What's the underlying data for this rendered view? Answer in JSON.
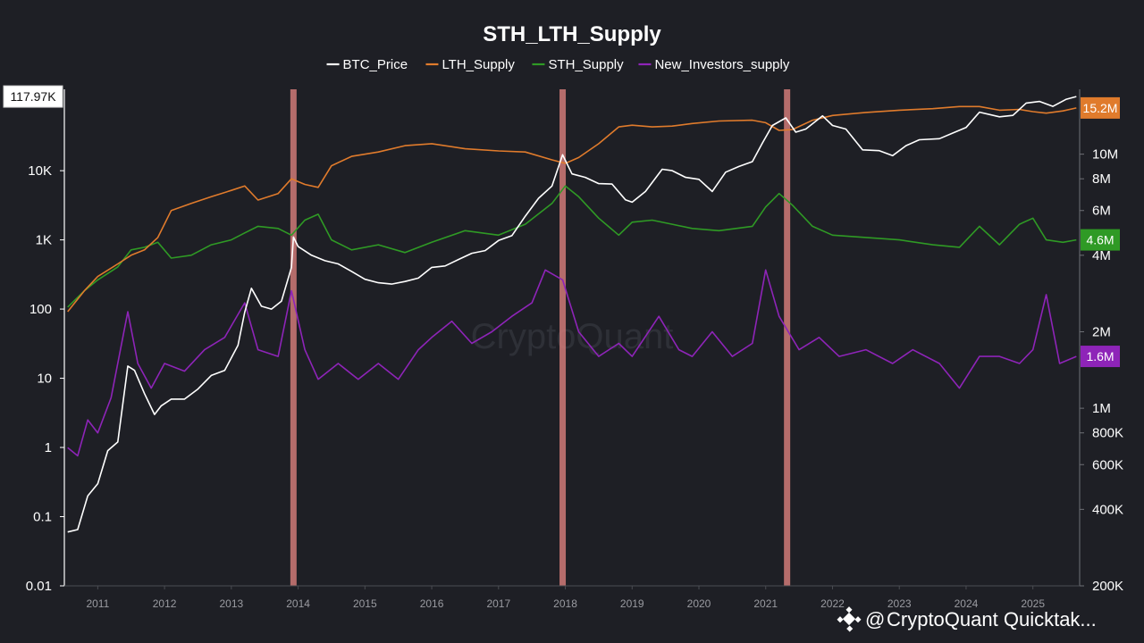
{
  "chart_data": {
    "type": "line",
    "title": "STH_LTH_Supply",
    "legend_position": "top-center",
    "grid": false,
    "x_axis": {
      "ticks": [
        "2011",
        "2012",
        "2013",
        "2014",
        "2015",
        "2016",
        "2017",
        "2018",
        "2019",
        "2020",
        "2021",
        "2022",
        "2023",
        "2024",
        "2025"
      ],
      "range": [
        2010.5,
        2025.7
      ]
    },
    "y_left": {
      "scale": "log",
      "range": [
        0.01,
        150000
      ],
      "ticks": [
        "0.01",
        "0.1",
        "1",
        "10",
        "100",
        "1K",
        "10K"
      ],
      "current_value_label": "117.97K",
      "current_value": 117970
    },
    "y_right": {
      "scale": "log",
      "range": [
        200000,
        18000000
      ],
      "ticks": [
        "200K",
        "400K",
        "600K",
        "800K",
        "1M",
        "2M",
        "4M",
        "6M",
        "8M",
        "10M"
      ]
    },
    "series": [
      {
        "name": "BTC_Price",
        "axis": "left",
        "color": "#ffffff",
        "current_label": "117.97K",
        "points": [
          [
            2010.55,
            0.06
          ],
          [
            2010.7,
            0.065
          ],
          [
            2010.85,
            0.2
          ],
          [
            2011.0,
            0.3
          ],
          [
            2011.15,
            0.9
          ],
          [
            2011.3,
            1.2
          ],
          [
            2011.45,
            15
          ],
          [
            2011.55,
            13
          ],
          [
            2011.7,
            6
          ],
          [
            2011.85,
            3
          ],
          [
            2011.95,
            4
          ],
          [
            2012.1,
            5
          ],
          [
            2012.3,
            5
          ],
          [
            2012.5,
            7
          ],
          [
            2012.7,
            11
          ],
          [
            2012.9,
            13
          ],
          [
            2013.1,
            30
          ],
          [
            2013.2,
            90
          ],
          [
            2013.3,
            200
          ],
          [
            2013.45,
            110
          ],
          [
            2013.6,
            100
          ],
          [
            2013.75,
            130
          ],
          [
            2013.9,
            400
          ],
          [
            2013.93,
            1100
          ],
          [
            2014.0,
            800
          ],
          [
            2014.2,
            600
          ],
          [
            2014.4,
            500
          ],
          [
            2014.6,
            450
          ],
          [
            2014.8,
            350
          ],
          [
            2015.0,
            270
          ],
          [
            2015.2,
            240
          ],
          [
            2015.4,
            230
          ],
          [
            2015.6,
            250
          ],
          [
            2015.8,
            280
          ],
          [
            2016.0,
            400
          ],
          [
            2016.2,
            420
          ],
          [
            2016.4,
            520
          ],
          [
            2016.6,
            640
          ],
          [
            2016.8,
            700
          ],
          [
            2017.0,
            980
          ],
          [
            2017.2,
            1150
          ],
          [
            2017.4,
            2200
          ],
          [
            2017.6,
            4000
          ],
          [
            2017.8,
            6000
          ],
          [
            2017.96,
            17000
          ],
          [
            2018.1,
            9000
          ],
          [
            2018.3,
            8000
          ],
          [
            2018.5,
            6500
          ],
          [
            2018.7,
            6400
          ],
          [
            2018.9,
            3800
          ],
          [
            2019.0,
            3500
          ],
          [
            2019.2,
            5000
          ],
          [
            2019.45,
            10500
          ],
          [
            2019.6,
            10000
          ],
          [
            2019.8,
            8000
          ],
          [
            2020.0,
            7500
          ],
          [
            2020.2,
            5000
          ],
          [
            2020.4,
            9500
          ],
          [
            2020.6,
            11500
          ],
          [
            2020.8,
            13500
          ],
          [
            2020.95,
            25000
          ],
          [
            2021.1,
            45000
          ],
          [
            2021.3,
            58000
          ],
          [
            2021.45,
            36000
          ],
          [
            2021.6,
            40000
          ],
          [
            2021.85,
            62000
          ],
          [
            2022.0,
            45000
          ],
          [
            2022.2,
            40000
          ],
          [
            2022.45,
            20000
          ],
          [
            2022.7,
            19500
          ],
          [
            2022.9,
            16500
          ],
          [
            2023.1,
            23000
          ],
          [
            2023.3,
            28000
          ],
          [
            2023.6,
            29000
          ],
          [
            2023.8,
            35000
          ],
          [
            2024.0,
            42000
          ],
          [
            2024.2,
            70000
          ],
          [
            2024.5,
            60000
          ],
          [
            2024.7,
            63000
          ],
          [
            2024.9,
            95000
          ],
          [
            2025.1,
            100000
          ],
          [
            2025.3,
            85000
          ],
          [
            2025.5,
            108000
          ],
          [
            2025.65,
            118000
          ]
        ]
      },
      {
        "name": "LTH_Supply",
        "axis": "right",
        "color": "#e07b2c",
        "current_label": "15.2M",
        "current_value": 15200000,
        "points": [
          [
            2010.55,
            2400000
          ],
          [
            2010.8,
            2900000
          ],
          [
            2011.0,
            3300000
          ],
          [
            2011.3,
            3700000
          ],
          [
            2011.5,
            4000000
          ],
          [
            2011.7,
            4200000
          ],
          [
            2011.9,
            4700000
          ],
          [
            2012.1,
            6000000
          ],
          [
            2012.4,
            6400000
          ],
          [
            2012.7,
            6800000
          ],
          [
            2013.0,
            7200000
          ],
          [
            2013.2,
            7500000
          ],
          [
            2013.4,
            6600000
          ],
          [
            2013.7,
            7000000
          ],
          [
            2013.9,
            8000000
          ],
          [
            2014.1,
            7600000
          ],
          [
            2014.3,
            7400000
          ],
          [
            2014.5,
            9000000
          ],
          [
            2014.8,
            9800000
          ],
          [
            2015.2,
            10200000
          ],
          [
            2015.6,
            10800000
          ],
          [
            2016.0,
            11000000
          ],
          [
            2016.5,
            10500000
          ],
          [
            2017.0,
            10300000
          ],
          [
            2017.4,
            10200000
          ],
          [
            2017.8,
            9500000
          ],
          [
            2018.0,
            9200000
          ],
          [
            2018.2,
            9700000
          ],
          [
            2018.5,
            11000000
          ],
          [
            2018.8,
            12800000
          ],
          [
            2019.0,
            13000000
          ],
          [
            2019.3,
            12800000
          ],
          [
            2019.6,
            12900000
          ],
          [
            2019.9,
            13200000
          ],
          [
            2020.3,
            13500000
          ],
          [
            2020.8,
            13600000
          ],
          [
            2021.0,
            13300000
          ],
          [
            2021.2,
            12400000
          ],
          [
            2021.4,
            12500000
          ],
          [
            2021.7,
            13600000
          ],
          [
            2022.0,
            14200000
          ],
          [
            2022.5,
            14600000
          ],
          [
            2023.0,
            14900000
          ],
          [
            2023.5,
            15100000
          ],
          [
            2023.9,
            15400000
          ],
          [
            2024.2,
            15400000
          ],
          [
            2024.5,
            14900000
          ],
          [
            2024.8,
            15000000
          ],
          [
            2025.0,
            14700000
          ],
          [
            2025.2,
            14500000
          ],
          [
            2025.45,
            14800000
          ],
          [
            2025.65,
            15200000
          ]
        ]
      },
      {
        "name": "STH_Supply",
        "axis": "right",
        "color": "#2f9a25",
        "current_label": "4.6M",
        "current_value": 4600000,
        "points": [
          [
            2010.55,
            2500000
          ],
          [
            2010.8,
            2900000
          ],
          [
            2011.0,
            3200000
          ],
          [
            2011.3,
            3600000
          ],
          [
            2011.5,
            4200000
          ],
          [
            2011.7,
            4300000
          ],
          [
            2011.9,
            4500000
          ],
          [
            2012.1,
            3900000
          ],
          [
            2012.4,
            4000000
          ],
          [
            2012.7,
            4400000
          ],
          [
            2013.0,
            4600000
          ],
          [
            2013.2,
            4900000
          ],
          [
            2013.4,
            5200000
          ],
          [
            2013.7,
            5100000
          ],
          [
            2013.9,
            4800000
          ],
          [
            2014.1,
            5500000
          ],
          [
            2014.3,
            5800000
          ],
          [
            2014.5,
            4600000
          ],
          [
            2014.8,
            4200000
          ],
          [
            2015.2,
            4400000
          ],
          [
            2015.6,
            4100000
          ],
          [
            2016.0,
            4500000
          ],
          [
            2016.5,
            5000000
          ],
          [
            2017.0,
            4800000
          ],
          [
            2017.4,
            5300000
          ],
          [
            2017.8,
            6400000
          ],
          [
            2018.0,
            7500000
          ],
          [
            2018.2,
            6800000
          ],
          [
            2018.5,
            5600000
          ],
          [
            2018.8,
            4800000
          ],
          [
            2019.0,
            5400000
          ],
          [
            2019.3,
            5500000
          ],
          [
            2019.6,
            5300000
          ],
          [
            2019.9,
            5100000
          ],
          [
            2020.3,
            5000000
          ],
          [
            2020.8,
            5200000
          ],
          [
            2021.0,
            6200000
          ],
          [
            2021.2,
            7000000
          ],
          [
            2021.4,
            6300000
          ],
          [
            2021.7,
            5200000
          ],
          [
            2022.0,
            4800000
          ],
          [
            2022.5,
            4700000
          ],
          [
            2023.0,
            4600000
          ],
          [
            2023.5,
            4400000
          ],
          [
            2023.9,
            4300000
          ],
          [
            2024.2,
            5200000
          ],
          [
            2024.5,
            4400000
          ],
          [
            2024.8,
            5300000
          ],
          [
            2025.0,
            5600000
          ],
          [
            2025.2,
            4600000
          ],
          [
            2025.45,
            4500000
          ],
          [
            2025.65,
            4600000
          ]
        ]
      },
      {
        "name": "New_Investors_supply",
        "axis": "right",
        "color": "#8e24b8",
        "current_label": "1.6M",
        "current_value": 1600000,
        "points": [
          [
            2010.55,
            700000
          ],
          [
            2010.7,
            650000
          ],
          [
            2010.85,
            900000
          ],
          [
            2011.0,
            800000
          ],
          [
            2011.2,
            1100000
          ],
          [
            2011.45,
            2400000
          ],
          [
            2011.6,
            1500000
          ],
          [
            2011.8,
            1200000
          ],
          [
            2012.0,
            1500000
          ],
          [
            2012.3,
            1400000
          ],
          [
            2012.6,
            1700000
          ],
          [
            2012.9,
            1900000
          ],
          [
            2013.2,
            2600000
          ],
          [
            2013.4,
            1700000
          ],
          [
            2013.7,
            1600000
          ],
          [
            2013.9,
            2900000
          ],
          [
            2014.1,
            1700000
          ],
          [
            2014.3,
            1300000
          ],
          [
            2014.6,
            1500000
          ],
          [
            2014.9,
            1300000
          ],
          [
            2015.2,
            1500000
          ],
          [
            2015.5,
            1300000
          ],
          [
            2015.8,
            1700000
          ],
          [
            2016.0,
            1900000
          ],
          [
            2016.3,
            2200000
          ],
          [
            2016.6,
            1800000
          ],
          [
            2016.9,
            2000000
          ],
          [
            2017.2,
            2300000
          ],
          [
            2017.5,
            2600000
          ],
          [
            2017.7,
            3500000
          ],
          [
            2017.96,
            3200000
          ],
          [
            2018.2,
            2000000
          ],
          [
            2018.5,
            1600000
          ],
          [
            2018.8,
            1800000
          ],
          [
            2019.0,
            1600000
          ],
          [
            2019.4,
            2300000
          ],
          [
            2019.7,
            1700000
          ],
          [
            2019.9,
            1600000
          ],
          [
            2020.2,
            2000000
          ],
          [
            2020.5,
            1600000
          ],
          [
            2020.8,
            1800000
          ],
          [
            2021.0,
            3500000
          ],
          [
            2021.2,
            2300000
          ],
          [
            2021.5,
            1700000
          ],
          [
            2021.8,
            1900000
          ],
          [
            2022.1,
            1600000
          ],
          [
            2022.5,
            1700000
          ],
          [
            2022.9,
            1500000
          ],
          [
            2023.2,
            1700000
          ],
          [
            2023.6,
            1500000
          ],
          [
            2023.9,
            1200000
          ],
          [
            2024.2,
            1600000
          ],
          [
            2024.5,
            1600000
          ],
          [
            2024.8,
            1500000
          ],
          [
            2025.0,
            1700000
          ],
          [
            2025.2,
            2800000
          ],
          [
            2025.4,
            1500000
          ],
          [
            2025.65,
            1600000
          ]
        ]
      }
    ],
    "highlight_bands": [
      {
        "x": 2013.93
      },
      {
        "x": 2017.96
      },
      {
        "x": 2021.32
      }
    ]
  },
  "watermark": "CryptoQuant",
  "brand": {
    "at": "@",
    "name": "CryptoQuant Quicktak..."
  }
}
